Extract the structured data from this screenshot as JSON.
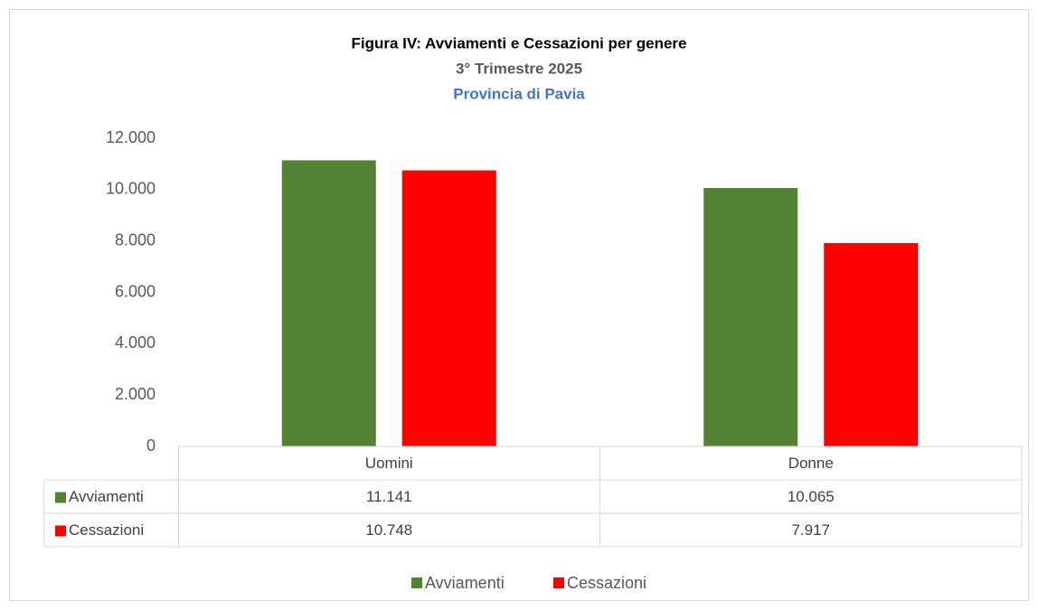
{
  "chart_data": {
    "type": "bar",
    "title": "Figura IV: Avviamenti e Cessazioni per genere",
    "subtitle": "3° Trimestre 2025",
    "subtitle_2": "Provincia di Pavia",
    "categories": [
      "Uomini",
      "Donne"
    ],
    "series": [
      {
        "name": "Avviamenti",
        "color": "#548235",
        "values": [
          11141,
          10065
        ],
        "value_labels": [
          "11.141",
          "10.065"
        ]
      },
      {
        "name": "Cessazioni",
        "color": "#ff0000",
        "values": [
          10748,
          7917
        ],
        "value_labels": [
          "10.748",
          "7.917"
        ]
      }
    ],
    "ylim": [
      0,
      12000
    ],
    "yticks": [
      0,
      {
        "value": 2000,
        "label": "2.000"
      },
      {
        "value": 4000,
        "label": "4.000"
      },
      {
        "value": 6000,
        "label": "6.000"
      },
      {
        "value": 8000,
        "label": "8.000"
      },
      {
        "value": 10000,
        "label": "10.000"
      },
      {
        "value": 12000,
        "label": "12.000"
      }
    ],
    "grid": false,
    "legend": "bottom"
  }
}
